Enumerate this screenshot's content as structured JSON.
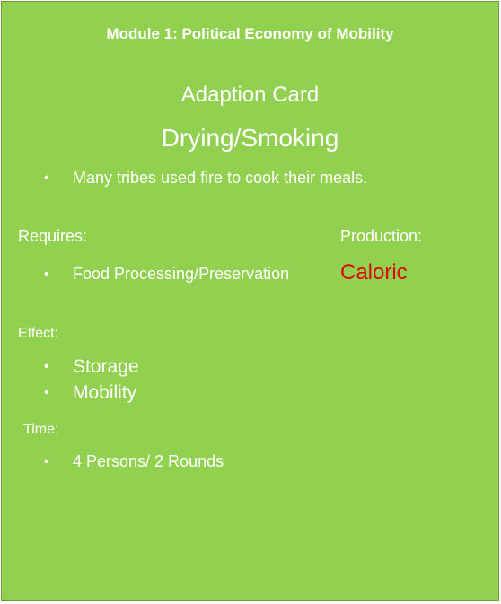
{
  "card": {
    "module_title": "Module 1: Political Economy of Mobility",
    "card_type": "Adaption Card",
    "card_name": "Drying/Smoking",
    "description": "Many tribes used fire to cook their meals.",
    "requires_label": "Requires:",
    "requires_items": [
      "Food Processing/Preservation"
    ],
    "production_label": "Production:",
    "production_value": "Caloric",
    "effect_label": "Effect:",
    "effect_items": [
      "Storage",
      "Mobility"
    ],
    "time_label": "Time:",
    "time_items": [
      "4 Persons/ 2 Rounds"
    ],
    "bullet_glyph": "•"
  },
  "colors": {
    "background": "#92d050",
    "text": "#ffffff",
    "production_value": "#e00000"
  }
}
